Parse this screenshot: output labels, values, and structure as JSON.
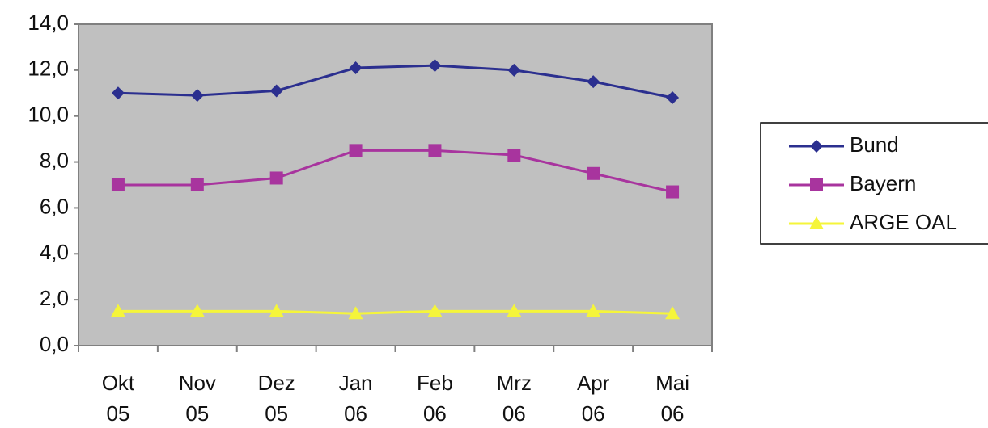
{
  "chart_data": {
    "type": "line",
    "categories": [
      "Okt 05",
      "Nov 05",
      "Dez 05",
      "Jan 06",
      "Feb 06",
      "Mrz 06",
      "Apr 06",
      "Mai 06"
    ],
    "series": [
      {
        "name": "Bund",
        "color": "#2b2f8f",
        "marker": "diamond",
        "values": [
          11.0,
          10.9,
          11.1,
          12.1,
          12.2,
          12.0,
          11.5,
          10.8
        ]
      },
      {
        "name": "Bayern",
        "color": "#a8349e",
        "marker": "square",
        "values": [
          7.0,
          7.0,
          7.3,
          8.5,
          8.5,
          8.3,
          7.5,
          6.7
        ]
      },
      {
        "name": "ARGE OAL",
        "color": "#f5f53a",
        "marker": "triangle",
        "values": [
          1.5,
          1.5,
          1.5,
          1.4,
          1.5,
          1.5,
          1.5,
          1.4
        ]
      }
    ],
    "ylim": [
      0,
      14
    ],
    "yticks": [
      {
        "value": 0,
        "label": "0,0"
      },
      {
        "value": 2,
        "label": "2,0"
      },
      {
        "value": 4,
        "label": "4,0"
      },
      {
        "value": 6,
        "label": "6,0"
      },
      {
        "value": 8,
        "label": "8,0"
      },
      {
        "value": 10,
        "label": "10,0"
      },
      {
        "value": 12,
        "label": "12,0"
      },
      {
        "value": 14,
        "label": "14,0"
      }
    ],
    "grid": false,
    "legend": "right"
  }
}
